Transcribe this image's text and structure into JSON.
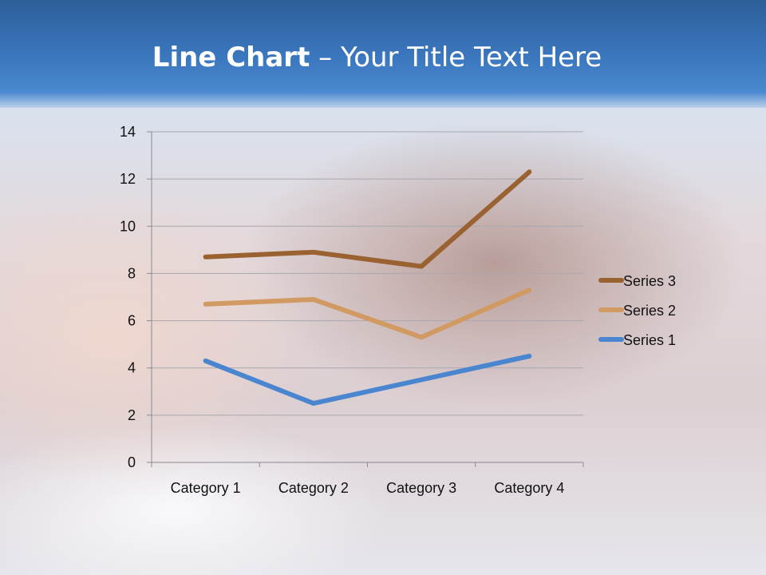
{
  "slide": {
    "title_bold": "Line Chart",
    "title_rest": " – Your Title Text Here"
  },
  "chart_data": {
    "type": "line",
    "title": "",
    "categories": [
      "Category 1",
      "Category 2",
      "Category 3",
      "Category 4"
    ],
    "ylim": [
      0,
      14
    ],
    "yticks": [
      "0",
      "2",
      "4",
      "6",
      "8",
      "10",
      "12",
      "14"
    ],
    "grid": true,
    "legend_placement": "right",
    "series": [
      {
        "name": "Series 1",
        "color": "#4a86d0",
        "values": [
          4.3,
          2.5,
          3.5,
          4.5
        ]
      },
      {
        "name": "Series 2",
        "color": "#d09a62",
        "values": [
          6.7,
          6.9,
          5.3,
          7.3
        ]
      },
      {
        "name": "Series 3",
        "color": "#9a6230",
        "values": [
          8.7,
          8.9,
          8.3,
          12.3
        ]
      }
    ]
  }
}
